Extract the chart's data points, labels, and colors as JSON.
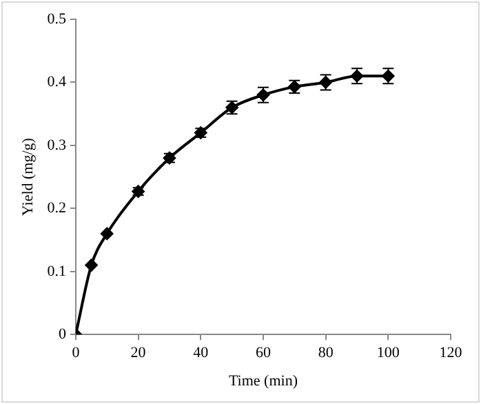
{
  "chart_data": {
    "type": "line",
    "xlabel": "Time (min)",
    "ylabel": "Yield (mg/g)",
    "x": [
      0,
      5,
      10,
      20,
      30,
      40,
      50,
      60,
      70,
      80,
      90,
      100
    ],
    "series": [
      {
        "color": "#000000",
        "values": [
          0,
          0.11,
          0.16,
          0.227,
          0.28,
          0.32,
          0.36,
          0.38,
          0.393,
          0.4,
          0.41,
          0.41
        ],
        "errors": [
          null,
          null,
          null,
          0.006,
          0.007,
          0.007,
          0.01,
          0.012,
          0.01,
          0.012,
          0.012,
          0.012
        ]
      }
    ],
    "xlim": [
      0,
      120
    ],
    "xticks": [
      0,
      20,
      40,
      60,
      80,
      100,
      120
    ],
    "ylim": [
      0,
      0.5
    ],
    "yticks": [
      0,
      0.1,
      0.2,
      0.3,
      0.4,
      0.5
    ],
    "grid": false,
    "legend": false,
    "marker": "diamond",
    "line_style": "solid"
  }
}
